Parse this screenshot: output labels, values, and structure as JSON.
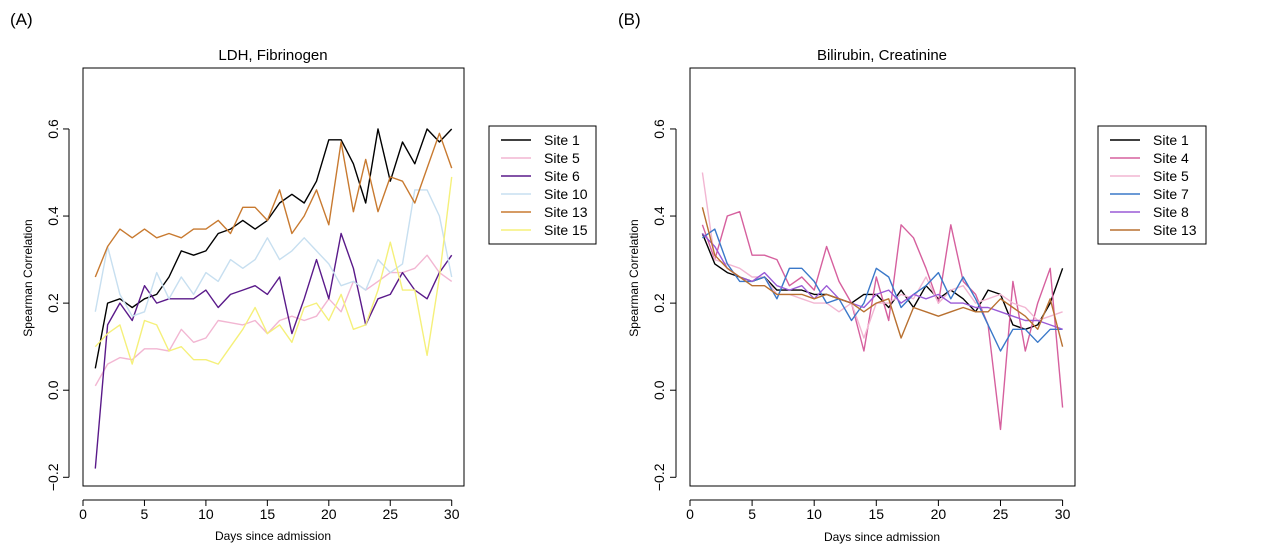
{
  "chart_data": [
    {
      "type": "line",
      "panel_label": "(A)",
      "title": "LDH, Fibrinogen",
      "xlabel": "Days since admission",
      "ylabel": "Spearman Correlation",
      "xlim": [
        0,
        31
      ],
      "ylim": [
        -0.22,
        0.74
      ],
      "xticks": [
        0,
        5,
        10,
        15,
        20,
        25,
        30
      ],
      "yticks": [
        -0.2,
        0.0,
        0.2,
        0.4,
        0.6
      ],
      "ytick_labels": [
        "−0.2",
        "0.0",
        "0.2",
        "0.4",
        "0.6"
      ],
      "grid": false,
      "legend_position": "right",
      "x": [
        1,
        2,
        3,
        4,
        5,
        6,
        7,
        8,
        9,
        10,
        11,
        12,
        13,
        14,
        15,
        16,
        17,
        18,
        19,
        20,
        21,
        22,
        23,
        24,
        25,
        26,
        27,
        28,
        29,
        30
      ],
      "series": [
        {
          "name": "Site 1",
          "color": "#000000",
          "values": [
            0.05,
            0.2,
            0.21,
            0.19,
            0.21,
            0.22,
            0.26,
            0.32,
            0.31,
            0.32,
            0.36,
            0.37,
            0.39,
            0.37,
            0.39,
            0.43,
            0.45,
            0.43,
            0.48,
            0.575,
            0.575,
            0.52,
            0.43,
            0.6,
            0.48,
            0.57,
            0.52,
            0.6,
            0.57,
            0.6
          ]
        },
        {
          "name": "Site 5",
          "color": "#f2b6d2",
          "values": [
            0.01,
            0.06,
            0.075,
            0.07,
            0.095,
            0.095,
            0.09,
            0.14,
            0.11,
            0.12,
            0.16,
            0.155,
            0.15,
            0.16,
            0.13,
            0.16,
            0.17,
            0.16,
            0.17,
            0.21,
            0.18,
            0.25,
            0.23,
            0.25,
            0.27,
            0.27,
            0.28,
            0.31,
            0.27,
            0.25
          ]
        },
        {
          "name": "Site 6",
          "color": "#5a1a8a",
          "values": [
            -0.18,
            0.15,
            0.2,
            0.16,
            0.24,
            0.2,
            0.21,
            0.21,
            0.21,
            0.23,
            0.19,
            0.22,
            0.23,
            0.24,
            0.22,
            0.26,
            0.13,
            0.21,
            0.3,
            0.21,
            0.36,
            0.28,
            0.15,
            0.21,
            0.22,
            0.27,
            0.23,
            0.21,
            0.27,
            0.31
          ]
        },
        {
          "name": "Site 10",
          "color": "#c7dff0",
          "values": [
            0.18,
            0.33,
            0.22,
            0.17,
            0.18,
            0.27,
            0.21,
            0.26,
            0.22,
            0.27,
            0.25,
            0.3,
            0.28,
            0.3,
            0.35,
            0.3,
            0.32,
            0.35,
            0.32,
            0.29,
            0.24,
            0.25,
            0.23,
            0.3,
            0.27,
            0.29,
            0.46,
            0.46,
            0.4,
            0.26
          ]
        },
        {
          "name": "Site 13",
          "color": "#c87a30",
          "values": [
            0.26,
            0.33,
            0.37,
            0.35,
            0.37,
            0.35,
            0.36,
            0.35,
            0.37,
            0.37,
            0.39,
            0.36,
            0.42,
            0.42,
            0.39,
            0.46,
            0.36,
            0.4,
            0.46,
            0.38,
            0.57,
            0.41,
            0.53,
            0.41,
            0.49,
            0.48,
            0.43,
            0.51,
            0.59,
            0.51
          ]
        },
        {
          "name": "Site 15",
          "color": "#f5f07a",
          "values": [
            0.1,
            0.13,
            0.15,
            0.06,
            0.16,
            0.15,
            0.09,
            0.1,
            0.07,
            0.07,
            0.06,
            0.1,
            0.14,
            0.19,
            0.13,
            0.15,
            0.11,
            0.19,
            0.2,
            0.16,
            0.22,
            0.14,
            0.15,
            0.23,
            0.34,
            0.23,
            0.23,
            0.08,
            0.26,
            0.49
          ]
        }
      ]
    },
    {
      "type": "line",
      "panel_label": "(B)",
      "title": "Bilirubin, Creatinine",
      "xlabel": "Days since admission",
      "ylabel": "Spearman Correlation",
      "xlim": [
        0,
        31
      ],
      "ylim": [
        -0.22,
        0.74
      ],
      "xticks": [
        0,
        5,
        10,
        15,
        20,
        25,
        30
      ],
      "yticks": [
        -0.2,
        0.0,
        0.2,
        0.4,
        0.6
      ],
      "ytick_labels": [
        "−0.2",
        "0.0",
        "0.2",
        "0.4",
        "0.6"
      ],
      "grid": false,
      "legend_position": "right",
      "x": [
        1,
        2,
        3,
        4,
        5,
        6,
        7,
        8,
        9,
        10,
        11,
        12,
        13,
        14,
        15,
        16,
        17,
        18,
        19,
        20,
        21,
        22,
        23,
        24,
        25,
        26,
        27,
        28,
        29,
        30
      ],
      "series": [
        {
          "name": "Site 1",
          "color": "#000000",
          "values": [
            0.36,
            0.29,
            0.27,
            0.26,
            0.25,
            0.26,
            0.23,
            0.23,
            0.23,
            0.22,
            0.22,
            0.21,
            0.2,
            0.22,
            0.22,
            0.19,
            0.23,
            0.19,
            0.24,
            0.21,
            0.23,
            0.21,
            0.18,
            0.23,
            0.22,
            0.15,
            0.14,
            0.15,
            0.2,
            0.28
          ]
        },
        {
          "name": "Site 4",
          "color": "#d6609e",
          "values": [
            0.38,
            0.3,
            0.4,
            0.41,
            0.31,
            0.31,
            0.3,
            0.24,
            0.26,
            0.23,
            0.33,
            0.25,
            0.2,
            0.09,
            0.26,
            0.16,
            0.38,
            0.35,
            0.28,
            0.2,
            0.38,
            0.25,
            0.22,
            0.15,
            -0.09,
            0.25,
            0.09,
            0.2,
            0.28,
            -0.04
          ]
        },
        {
          "name": "Site 5",
          "color": "#f2b6d2",
          "values": [
            0.5,
            0.3,
            0.29,
            0.28,
            0.26,
            0.26,
            0.22,
            0.22,
            0.21,
            0.2,
            0.2,
            0.18,
            0.2,
            0.12,
            0.2,
            0.2,
            0.22,
            0.21,
            0.26,
            0.2,
            0.23,
            0.24,
            0.2,
            0.21,
            0.22,
            0.2,
            0.19,
            0.16,
            0.17,
            0.18
          ]
        },
        {
          "name": "Site 7",
          "color": "#3a78c9",
          "values": [
            0.35,
            0.37,
            0.29,
            0.25,
            0.25,
            0.26,
            0.21,
            0.28,
            0.28,
            0.25,
            0.2,
            0.21,
            0.16,
            0.2,
            0.28,
            0.26,
            0.19,
            0.22,
            0.24,
            0.27,
            0.21,
            0.26,
            0.21,
            0.15,
            0.09,
            0.14,
            0.14,
            0.11,
            0.14,
            0.14
          ]
        },
        {
          "name": "Site 8",
          "color": "#9a5ad6",
          "values": [
            0.36,
            0.33,
            0.28,
            0.26,
            0.25,
            0.27,
            0.24,
            0.23,
            0.24,
            0.21,
            0.24,
            0.21,
            0.2,
            0.19,
            0.22,
            0.23,
            0.2,
            0.22,
            0.21,
            0.22,
            0.2,
            0.2,
            0.19,
            0.19,
            0.18,
            0.17,
            0.16,
            0.16,
            0.15,
            0.14
          ]
        },
        {
          "name": "Site 13",
          "color": "#b87030",
          "values": [
            0.42,
            0.31,
            0.28,
            0.26,
            0.24,
            0.24,
            0.22,
            0.22,
            0.22,
            0.21,
            0.22,
            0.21,
            0.2,
            0.18,
            0.2,
            0.21,
            0.12,
            0.19,
            0.18,
            0.17,
            0.18,
            0.19,
            0.18,
            0.18,
            0.21,
            0.19,
            0.17,
            0.14,
            0.21,
            0.1
          ]
        }
      ]
    }
  ]
}
